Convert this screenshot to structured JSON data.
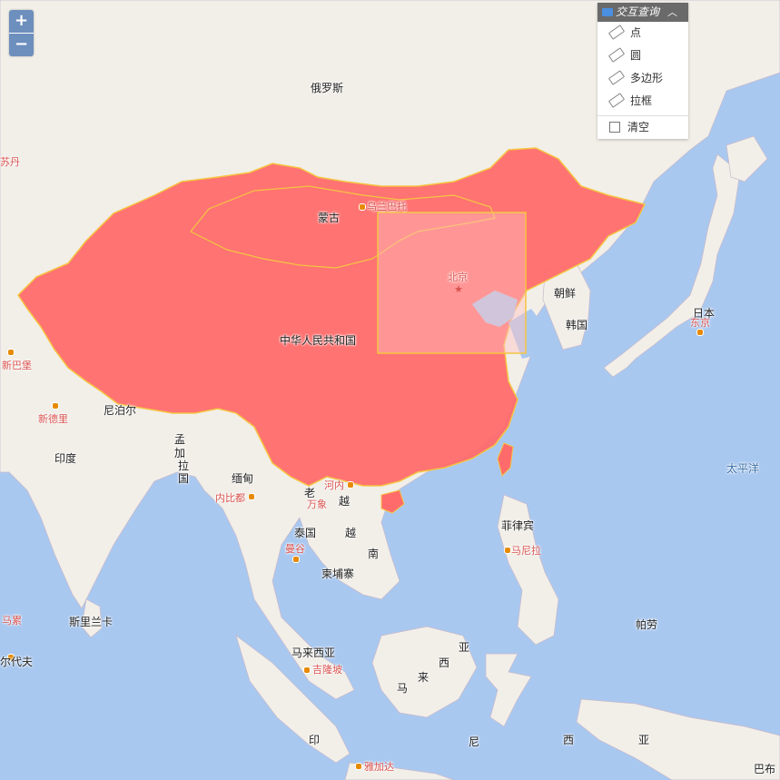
{
  "map": {
    "zoom_in_label": "+",
    "zoom_out_label": "−",
    "labels": {
      "russia": "俄罗斯",
      "mongolia": "蒙古",
      "ulaanbaatar": "乌兰巴托",
      "china": "中华人民共和国",
      "beijing": "北京",
      "north_korea": "朝鲜",
      "south_korea": "韩国",
      "japan": "日本",
      "tokyo": "东京",
      "pacific": "太平洋",
      "nepal": "尼泊尔",
      "new_delhi": "新德里",
      "india": "印度",
      "bangladesh_1": "孟",
      "bangladesh_2": "加",
      "bangladesh_3": "拉",
      "bangladesh_4": "国",
      "myanmar": "缅甸",
      "naypyidaw": "内比都",
      "laos": "老",
      "vientiane": "万象",
      "hanoi": "河内",
      "vietnam_1": "越",
      "vietnam_2": "南",
      "thailand": "泰国",
      "bangkok": "曼谷",
      "cambodia": "柬埔寨",
      "philippines": "菲律宾",
      "manila": "马尼拉",
      "palau": "帕劳",
      "sri_lanka": "斯里兰卡",
      "malaysia": "马来西亚",
      "kuala_lumpur": "吉隆坡",
      "indonesia_1": "印",
      "indonesia_2": "尼",
      "jakarta": "雅加达",
      "maldives": "尔代夫",
      "male": "马累",
      "pakistan_city": "新巴堡",
      "tajik_city": "苏丹",
      "malaysia_1": "马",
      "malaysia_2": "来",
      "malaysia_3": "西",
      "malaysia_4": "亚",
      "png_1": "西",
      "png_2": "亚",
      "bab": "巴布"
    }
  },
  "query_menu": {
    "title": "交互查询",
    "items": [
      "点",
      "圆",
      "多边形",
      "拉框"
    ],
    "clear_label": "清空"
  },
  "colors": {
    "ocean": "#a9c8f0",
    "land": "#f2efe9",
    "highlight_fill": "#ff6b6b",
    "highlight_border": "#f5c542",
    "menu_header": "#6a6a6a",
    "zoom_button": "#6d8fbd"
  }
}
